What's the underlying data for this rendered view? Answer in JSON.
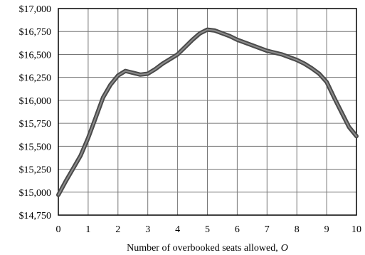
{
  "chart_data": {
    "type": "line",
    "title": "",
    "xlabel": "Number of overbooked seats allowed,",
    "xlabel_var": "O",
    "ylabel": "",
    "xlim": [
      0,
      10
    ],
    "ylim": [
      14750,
      17000
    ],
    "grid": true,
    "legend": "none",
    "x_ticks": [
      0,
      1,
      2,
      3,
      4,
      5,
      6,
      7,
      8,
      9,
      10
    ],
    "x_tick_labels": [
      "0",
      "1",
      "2",
      "3",
      "4",
      "5",
      "6",
      "7",
      "8",
      "9",
      "10"
    ],
    "y_ticks": [
      14750,
      15000,
      15250,
      15500,
      15750,
      16000,
      16250,
      16500,
      16750,
      17000
    ],
    "y_tick_labels": [
      "$14,750",
      "$15,000",
      "$15,250",
      "$15,500",
      "$15,750",
      "$16,000",
      "$16,250",
      "$16,500",
      "$16,750",
      "$17,000"
    ],
    "series": [
      {
        "x": [
          0,
          0.25,
          0.5,
          0.75,
          1,
          1.25,
          1.5,
          1.75,
          2,
          2.25,
          2.5,
          2.75,
          3,
          3.25,
          3.5,
          3.75,
          4,
          4.25,
          4.5,
          4.75,
          5,
          5.25,
          5.5,
          5.75,
          6,
          6.25,
          6.5,
          6.75,
          7,
          7.25,
          7.5,
          7.75,
          8,
          8.25,
          8.5,
          8.75,
          9,
          9.25,
          9.5,
          9.75,
          10
        ],
        "values": [
          14970,
          15120,
          15260,
          15400,
          15590,
          15810,
          16030,
          16170,
          16270,
          16320,
          16300,
          16280,
          16290,
          16340,
          16400,
          16450,
          16500,
          16580,
          16660,
          16730,
          16770,
          16760,
          16730,
          16700,
          16660,
          16630,
          16600,
          16570,
          16540,
          16520,
          16500,
          16470,
          16440,
          16400,
          16350,
          16290,
          16200,
          16030,
          15870,
          15710,
          15610
        ],
        "color": "#555555"
      }
    ]
  }
}
